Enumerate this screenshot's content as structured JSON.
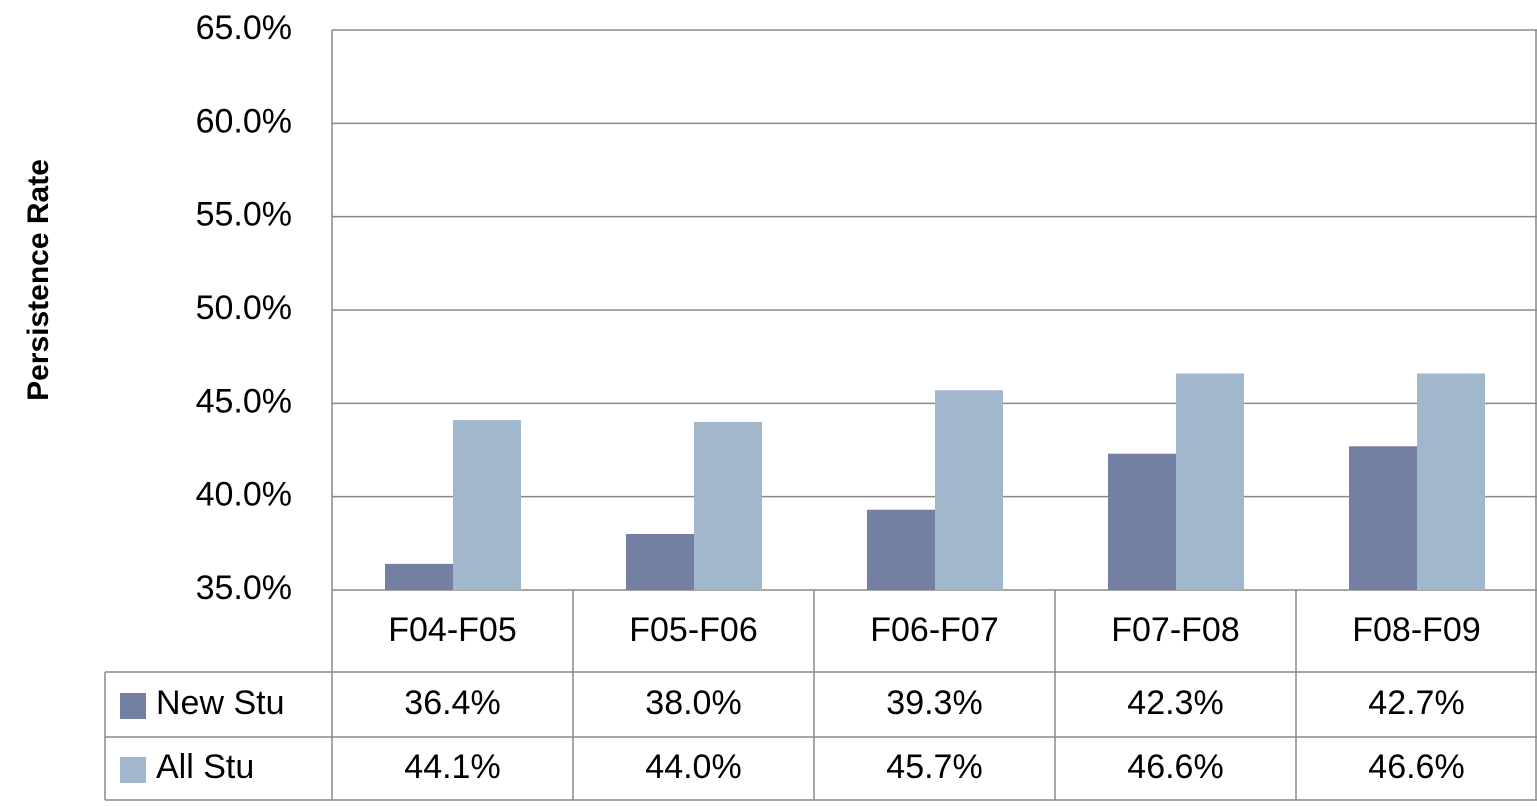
{
  "chart_data": {
    "type": "bar",
    "y_label": "Persistence Rate",
    "categories": [
      "F04-F05",
      "F05-F06",
      "F06-F07",
      "F07-F08",
      "F08-F09"
    ],
    "series": [
      {
        "name": "New Stu",
        "color": "#737fa3",
        "values": [
          36.4,
          38.0,
          39.3,
          42.3,
          42.7
        ],
        "value_labels": [
          "36.4%",
          "38.0%",
          "39.3%",
          "42.3%",
          "42.7%"
        ]
      },
      {
        "name": "All Stu",
        "color": "#a1b7cc",
        "values": [
          44.1,
          44.0,
          45.7,
          46.6,
          46.6
        ],
        "value_labels": [
          "44.1%",
          "44.0%",
          "45.7%",
          "46.6%",
          "46.6%"
        ]
      }
    ],
    "ylim": [
      35,
      65
    ],
    "yticks": [
      {
        "value": 35,
        "label": "35.0%"
      },
      {
        "value": 40,
        "label": "40.0%"
      },
      {
        "value": 45,
        "label": "45.0%"
      },
      {
        "value": 50,
        "label": "50.0%"
      },
      {
        "value": 55,
        "label": "55.0%"
      },
      {
        "value": 60,
        "label": "60.0%"
      },
      {
        "value": 65,
        "label": "65.0%"
      }
    ],
    "grid": true
  }
}
